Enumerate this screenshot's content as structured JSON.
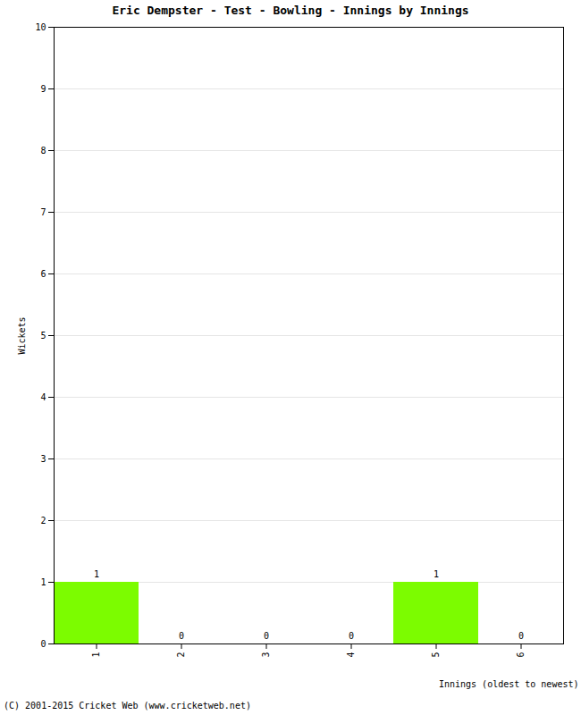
{
  "chart_data": {
    "type": "bar",
    "title": "Eric Dempster - Test - Bowling - Innings by Innings",
    "x_label": "Innings (oldest to newest)",
    "y_label": "Wickets",
    "caption": "(C) 2001-2015 Cricket Web (www.cricketweb.net)",
    "categories": [
      "1",
      "2",
      "3",
      "4",
      "5",
      "6"
    ],
    "values": [
      1,
      0,
      0,
      0,
      1,
      0
    ],
    "color": "#7cfc00",
    "ylim": [
      0,
      10
    ],
    "yticks": [
      0,
      1,
      2,
      3,
      4,
      5,
      6,
      7,
      8,
      9,
      10
    ],
    "grid": true,
    "data_labels": true
  }
}
